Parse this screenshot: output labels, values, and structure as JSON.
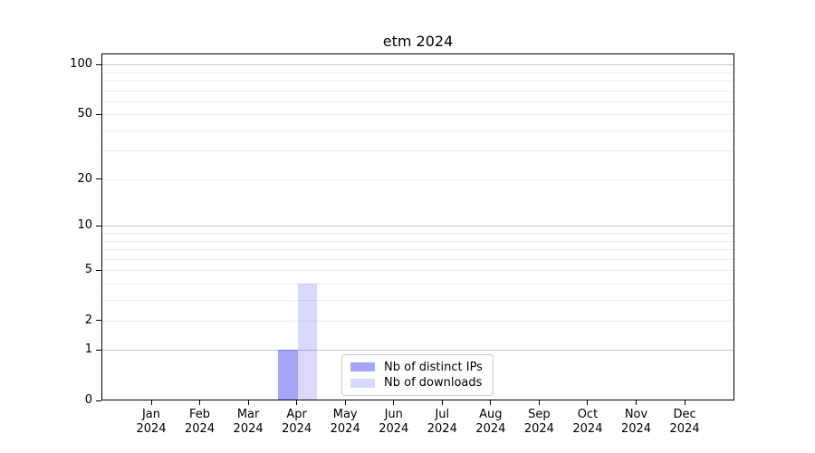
{
  "chart_data": {
    "type": "bar",
    "title": "etm 2024",
    "categories": [
      "Jan",
      "Feb",
      "Mar",
      "Apr",
      "May",
      "Jun",
      "Jul",
      "Aug",
      "Sep",
      "Oct",
      "Nov",
      "Dec"
    ],
    "x_tick_year": "2024",
    "series": [
      {
        "name": "Nb of distinct IPs",
        "color": "rgba(0,0,238,0.35)",
        "values": [
          0,
          0,
          0,
          1,
          0,
          0,
          0,
          0,
          0,
          0,
          0,
          0
        ]
      },
      {
        "name": "Nb of downloads",
        "color": "rgba(0,0,238,0.15)",
        "values": [
          0,
          0,
          0,
          4,
          0,
          0,
          0,
          0,
          0,
          0,
          0,
          0
        ]
      }
    ],
    "yscale": "log1p",
    "ylim": [
      0,
      117
    ],
    "y_ticks": [
      0,
      1,
      2,
      5,
      10,
      20,
      50,
      100
    ],
    "y_major_gridlines": [
      1,
      10,
      100
    ],
    "y_minor_gridlines": [
      2,
      3,
      4,
      5,
      6,
      7,
      8,
      9,
      20,
      30,
      40,
      50,
      60,
      70,
      80,
      90
    ],
    "grid": true,
    "legend_position": "lower center",
    "colors": {
      "spine": "#000000",
      "major_grid": "#c6c6c6",
      "minor_grid": "#ececec",
      "background": "#ffffff"
    }
  }
}
